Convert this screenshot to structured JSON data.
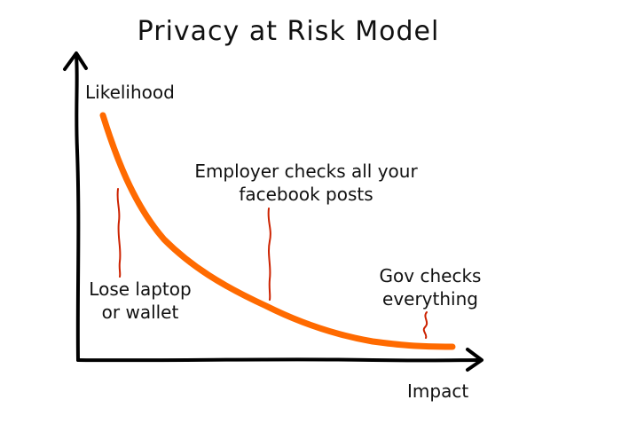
{
  "title": "Privacy at Risk Model",
  "axes": {
    "ylabel": "Likelihood",
    "xlabel": "Impact"
  },
  "annotations": {
    "employer": {
      "line1": "Employer checks all your",
      "line2": "facebook posts"
    },
    "lose": {
      "line1": "Lose laptop",
      "line2": "or wallet"
    },
    "gov": {
      "line1": "Gov checks",
      "line2": "everything"
    }
  },
  "colors": {
    "curve": "#ff6a00",
    "pointer": "#cc2200",
    "axis": "#000000"
  }
}
